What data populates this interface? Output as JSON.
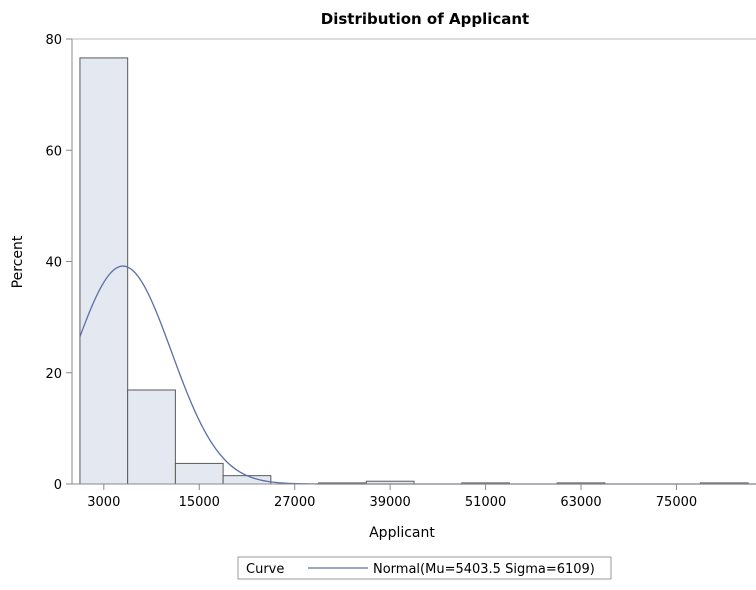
{
  "chart_data": {
    "type": "bar",
    "title": "Distribution of Applicant",
    "xlabel": "Applicant",
    "ylabel": "Percent",
    "xlim": [
      -1000,
      85000
    ],
    "ylim": [
      0,
      80
    ],
    "x_ticks": [
      3000,
      15000,
      27000,
      39000,
      51000,
      63000,
      75000
    ],
    "x_tick_labels": [
      "3000",
      "15000",
      "27000",
      "39000",
      "51000",
      "63000",
      "75000"
    ],
    "y_ticks": [
      0,
      20,
      40,
      60,
      80
    ],
    "y_tick_labels": [
      "0",
      "20",
      "40",
      "60",
      "80"
    ],
    "bin_width": 6000,
    "bins": [
      {
        "start": 0,
        "end": 6000,
        "percent": 76.6
      },
      {
        "start": 6000,
        "end": 12000,
        "percent": 16.9
      },
      {
        "start": 12000,
        "end": 18000,
        "percent": 3.7
      },
      {
        "start": 18000,
        "end": 24000,
        "percent": 1.5
      },
      {
        "start": 24000,
        "end": 30000,
        "percent": 0.0
      },
      {
        "start": 30000,
        "end": 36000,
        "percent": 0.2
      },
      {
        "start": 36000,
        "end": 42000,
        "percent": 0.5
      },
      {
        "start": 42000,
        "end": 48000,
        "percent": 0.0
      },
      {
        "start": 48000,
        "end": 54000,
        "percent": 0.2
      },
      {
        "start": 54000,
        "end": 60000,
        "percent": 0.0
      },
      {
        "start": 60000,
        "end": 66000,
        "percent": 0.2
      },
      {
        "start": 66000,
        "end": 72000,
        "percent": 0.0
      },
      {
        "start": 72000,
        "end": 78000,
        "percent": 0.0
      },
      {
        "start": 78000,
        "end": 84000,
        "percent": 0.2
      }
    ],
    "curve": {
      "type": "normal",
      "mu": 5403.5,
      "sigma": 6109,
      "color": "#5b6ea8"
    },
    "legend": {
      "position": "bottom",
      "label": "Curve",
      "entry": "Normal(Mu=5403.5 Sigma=6109)"
    },
    "grid": false,
    "bar_fill": "#e4e8f1",
    "bar_stroke": "#5a5a5a"
  }
}
